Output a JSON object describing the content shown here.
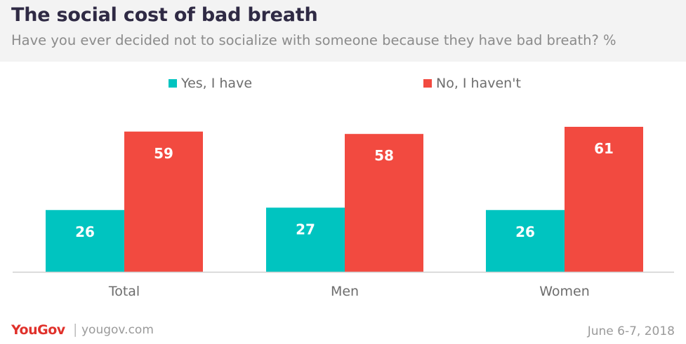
{
  "title": "The social cost of bad breath",
  "subtitle": "Have you ever decided not to socialize with someone because they have bad breath? %",
  "legend": [
    {
      "label": "Yes, I have",
      "color": "#00c4c0"
    },
    {
      "label": "No, I haven't",
      "color": "#f24a40"
    }
  ],
  "footer": {
    "brand": "YouGov",
    "separator": "|",
    "site": "yougov.com",
    "date": "June 6-7, 2018"
  },
  "chart_data": {
    "type": "bar",
    "categories": [
      "Total",
      "Men",
      "Women"
    ],
    "series": [
      {
        "name": "Yes, I have",
        "color": "#00c4c0",
        "values": [
          26,
          27,
          26
        ]
      },
      {
        "name": "No, I haven't",
        "color": "#f24a40",
        "values": [
          59,
          58,
          61
        ]
      }
    ],
    "ylim": [
      0,
      61
    ],
    "grid": false,
    "legend_position": "top",
    "data_labels": true
  }
}
